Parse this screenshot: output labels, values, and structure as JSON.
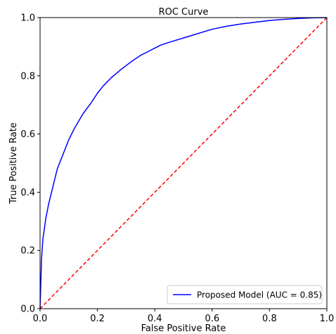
{
  "chart_data": {
    "type": "line",
    "title": "ROC Curve",
    "xlabel": "False Positive Rate",
    "ylabel": "True Positive Rate",
    "xlim": [
      0.0,
      1.0
    ],
    "ylim": [
      0.0,
      1.0
    ],
    "grid": false,
    "legend_position": "lower-right",
    "x_ticks": [
      "0.0",
      "0.2",
      "0.4",
      "0.6",
      "0.8",
      "1.0"
    ],
    "y_ticks": [
      "0.0",
      "0.2",
      "0.4",
      "0.6",
      "0.8",
      "1.0"
    ],
    "series": [
      {
        "name": "Proposed Model (AUC = 0.85)",
        "color": "#0000ff",
        "style": "solid",
        "x": [
          0.0,
          0.005,
          0.01,
          0.02,
          0.03,
          0.04,
          0.05,
          0.06,
          0.08,
          0.1,
          0.12,
          0.15,
          0.18,
          0.2,
          0.22,
          0.25,
          0.28,
          0.3,
          0.32,
          0.35,
          0.38,
          0.4,
          0.42,
          0.45,
          0.5,
          0.55,
          0.6,
          0.65,
          0.7,
          0.75,
          0.8,
          0.85,
          0.9,
          0.95,
          1.0
        ],
        "y": [
          0.0,
          0.17,
          0.24,
          0.31,
          0.36,
          0.4,
          0.44,
          0.48,
          0.53,
          0.58,
          0.62,
          0.67,
          0.71,
          0.74,
          0.765,
          0.795,
          0.82,
          0.835,
          0.85,
          0.87,
          0.885,
          0.895,
          0.905,
          0.915,
          0.93,
          0.945,
          0.96,
          0.97,
          0.978,
          0.984,
          0.99,
          0.994,
          0.997,
          0.999,
          1.0
        ]
      },
      {
        "name": "",
        "color": "#ff0000",
        "style": "dashed",
        "x": [
          0.0,
          1.0
        ],
        "y": [
          0.0,
          1.0
        ]
      }
    ]
  }
}
